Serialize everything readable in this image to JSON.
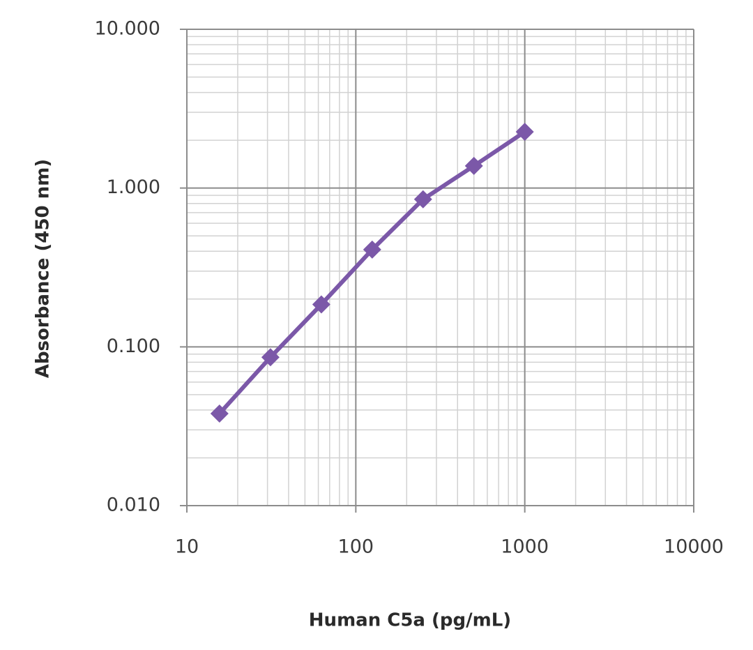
{
  "chart_data": {
    "type": "line",
    "x_label": "Human C5a (pg/mL)",
    "y_label": "Absorbance (450 nm)",
    "x": [
      15.6,
      31.25,
      62.5,
      125,
      250,
      500,
      1000
    ],
    "values": [
      0.038,
      0.086,
      0.185,
      0.41,
      0.85,
      1.38,
      2.26
    ],
    "color": "#7b58a8",
    "xscale": "log",
    "yscale": "log",
    "xlim": [
      10,
      10000
    ],
    "ylim": [
      0.01,
      10
    ],
    "xticks": [
      10,
      100,
      1000,
      10000
    ],
    "yticks": [
      {
        "value": 0.01,
        "label": "0.010"
      },
      {
        "value": 0.1,
        "label": "0.100"
      },
      {
        "value": 1,
        "label": "1.000"
      },
      {
        "value": 10,
        "label": "10.000"
      }
    ],
    "grid": true,
    "minor_grid": true,
    "marker": "diamond"
  }
}
